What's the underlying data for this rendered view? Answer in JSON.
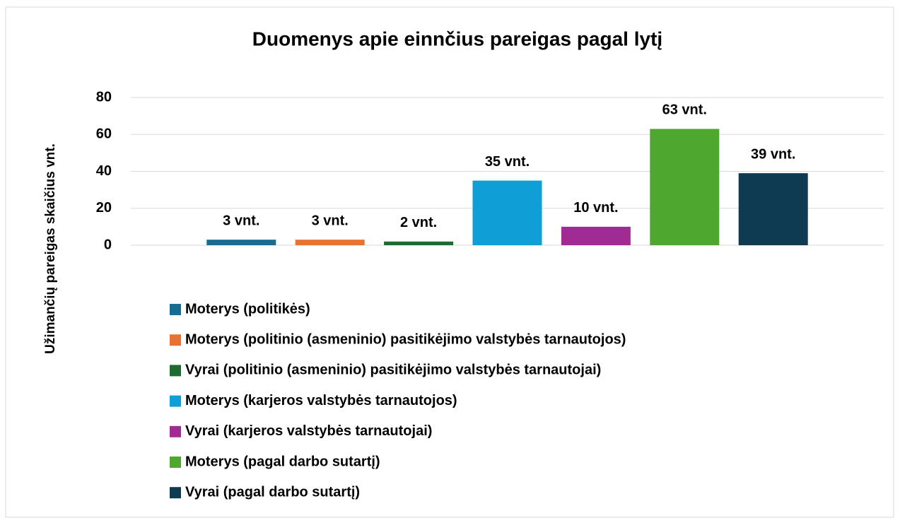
{
  "chart_data": {
    "type": "bar",
    "title": "Duomenys apie einnčius pareigas pagal lytį",
    "y_label": "Užimančių pareigas skaičius vnt.",
    "categories": [
      null
    ],
    "series": [
      {
        "name": "Moterys (politikės)",
        "color": "#196b8f",
        "values": [
          3
        ],
        "value_labels": [
          "3 vnt."
        ]
      },
      {
        "name": "Moterys (politinio (asmeninio) pasitikėjimo valstybės tarnautojos)",
        "color": "#e97132",
        "values": [
          3
        ],
        "value_labels": [
          "3 vnt."
        ]
      },
      {
        "name": "Vyrai (politinio (asmeninio) pasitikėjimo valstybės tarnautojai)",
        "color": "#1e6b32",
        "values": [
          2
        ],
        "value_labels": [
          "2 vnt."
        ]
      },
      {
        "name": "Moterys (karjeros valstybės tarnautojos)",
        "color": "#0f9ed5",
        "values": [
          35
        ],
        "value_labels": [
          "35 vnt."
        ]
      },
      {
        "name": "Vyrai (karjeros valstybės tarnautojai)",
        "color": "#a02b93",
        "values": [
          10
        ],
        "value_labels": [
          "10 vnt."
        ]
      },
      {
        "name": "Moterys (pagal darbo sutartį)",
        "color": "#4ea72e",
        "values": [
          63
        ],
        "value_labels": [
          "63 vnt."
        ]
      },
      {
        "name": "Vyrai (pagal darbo sutartį)",
        "color": "#0e3a52",
        "values": [
          39
        ],
        "value_labels": [
          "39 vnt."
        ]
      }
    ],
    "ylim": [
      0,
      80
    ],
    "yticks": [
      0,
      20,
      40,
      60,
      80
    ],
    "grid": true,
    "legend": "bottom"
  }
}
